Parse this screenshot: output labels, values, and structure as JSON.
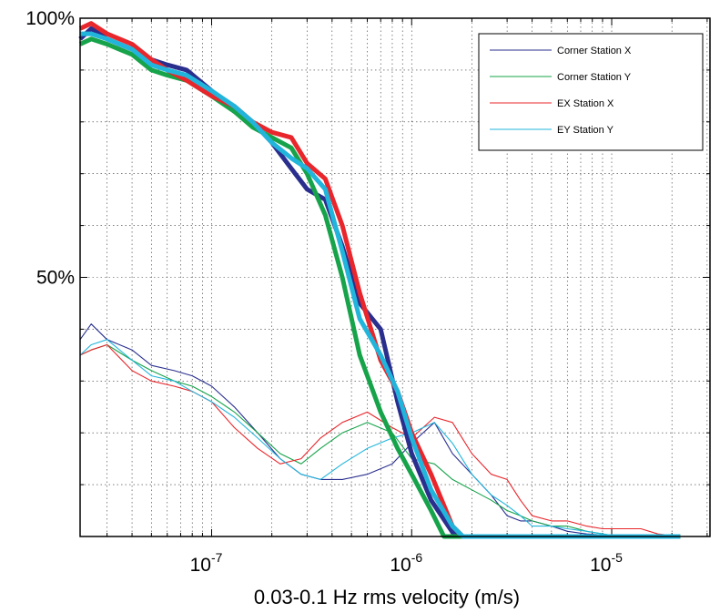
{
  "chart_data": {
    "type": "line",
    "title": "",
    "xlabel": "0.03-0.1 Hz rms velocity (m/s)",
    "ylabel": "",
    "x_scale": "log",
    "xlim": [
      2.2e-08,
      3.1e-05
    ],
    "ylim": [
      0,
      100
    ],
    "grid": true,
    "legend_position": "top-right",
    "x_ticks": [
      {
        "value": 1e-07,
        "base": "10",
        "exp": "-7"
      },
      {
        "value": 1e-06,
        "base": "10",
        "exp": "-6"
      },
      {
        "value": 1e-05,
        "base": "10",
        "exp": "-5"
      }
    ],
    "y_ticks": [
      {
        "value": 50,
        "label": "50%"
      },
      {
        "value": 100,
        "label": "100%"
      }
    ],
    "colors": {
      "Corner Station X": "#2a2f8e",
      "Corner Station Y": "#16a34a",
      "EX Station X": "#e8262b",
      "EY Station Y": "#22b5dc"
    },
    "series": [
      {
        "name": "Corner Station X",
        "kind": "cumulative",
        "x": [
          2.2e-08,
          2.5e-08,
          3e-08,
          4e-08,
          5e-08,
          6e-08,
          7.5e-08,
          1e-07,
          1.3e-07,
          1.6e-07,
          2e-07,
          2.5e-07,
          3e-07,
          3.7e-07,
          4.5e-07,
          5.5e-07,
          7e-07,
          8.5e-07,
          1e-06,
          1.25e-06,
          1.6e-06,
          1.8e-06,
          2.2e-05
        ],
        "y": [
          96,
          98,
          96,
          94,
          92,
          91,
          90,
          86,
          82,
          80,
          76,
          71,
          67,
          65,
          56,
          45,
          40,
          26,
          16,
          7,
          0.8,
          0,
          0
        ]
      },
      {
        "name": "Corner Station Y",
        "kind": "cumulative",
        "x": [
          2.2e-08,
          2.5e-08,
          3e-08,
          4e-08,
          5e-08,
          6e-08,
          7.5e-08,
          1e-07,
          1.3e-07,
          1.6e-07,
          2e-07,
          2.5e-07,
          3e-07,
          3.7e-07,
          4.5e-07,
          5.5e-07,
          7e-07,
          8.5e-07,
          1e-06,
          1.25e-06,
          1.45e-06,
          1.6e-06,
          2.2e-05
        ],
        "y": [
          95,
          96,
          95,
          93,
          90,
          89,
          88,
          85,
          82,
          79,
          77,
          75,
          70,
          62,
          50,
          35,
          24,
          17,
          12,
          5,
          0,
          0,
          0
        ]
      },
      {
        "name": "EX Station X",
        "kind": "cumulative",
        "x": [
          2.2e-08,
          2.5e-08,
          3e-08,
          4e-08,
          5e-08,
          6e-08,
          7.5e-08,
          1e-07,
          1.3e-07,
          1.6e-07,
          2e-07,
          2.5e-07,
          3e-07,
          3.7e-07,
          4.5e-07,
          5.5e-07,
          7e-07,
          8.5e-07,
          1e-06,
          1.25e-06,
          1.6e-06,
          1.8e-06,
          1.65e-05
        ],
        "y": [
          98,
          99,
          97,
          95,
          92,
          90,
          88,
          85,
          83,
          80,
          78,
          77,
          72,
          69,
          60,
          47,
          34,
          28,
          20,
          12,
          2,
          0,
          0
        ]
      },
      {
        "name": "EY Station Y",
        "kind": "cumulative",
        "x": [
          2.2e-08,
          2.5e-08,
          3e-08,
          4e-08,
          5e-08,
          6e-08,
          7.5e-08,
          1e-07,
          1.3e-07,
          1.6e-07,
          2e-07,
          2.5e-07,
          3e-07,
          3.7e-07,
          4.5e-07,
          5.5e-07,
          7e-07,
          8.5e-07,
          1e-06,
          1.25e-06,
          1.6e-06,
          1.8e-06,
          2.2e-05
        ],
        "y": [
          97,
          97,
          96,
          94,
          91,
          90,
          89,
          86,
          83,
          80,
          76,
          73,
          71,
          67,
          55,
          42,
          35,
          28,
          19,
          9,
          2,
          0,
          0
        ]
      },
      {
        "name": "Corner Station X",
        "kind": "histogram",
        "x": [
          2.2e-08,
          2.5e-08,
          3e-08,
          4e-08,
          5e-08,
          6.5e-08,
          8e-08,
          1e-07,
          1.3e-07,
          1.7e-07,
          2.2e-07,
          2.8e-07,
          3.5e-07,
          4.5e-07,
          6e-07,
          8e-07,
          1e-06,
          1.3e-06,
          1.6e-06,
          2e-06,
          2.5e-06,
          3e-06,
          3.5e-06,
          4e-06,
          5e-06,
          6e-06,
          7.5e-06,
          9e-06,
          1.1e-05,
          1.4e-05,
          1.7e-05,
          2.2e-05
        ],
        "y": [
          38,
          41,
          38,
          36,
          33,
          32,
          31,
          29,
          25,
          20,
          15,
          12,
          11,
          11,
          12,
          14,
          18,
          22,
          16,
          12,
          8,
          4,
          3,
          3,
          2,
          1,
          0.5,
          0.3,
          0,
          0,
          0,
          0
        ]
      },
      {
        "name": "Corner Station Y",
        "kind": "histogram",
        "x": [
          2.2e-08,
          2.5e-08,
          3e-08,
          4e-08,
          5e-08,
          6.5e-08,
          8e-08,
          1e-07,
          1.3e-07,
          1.7e-07,
          2.2e-07,
          2.8e-07,
          3.5e-07,
          4.5e-07,
          6e-07,
          8e-07,
          1e-06,
          1.3e-06,
          1.6e-06,
          2e-06,
          2.5e-06,
          3e-06,
          3.5e-06,
          4e-06,
          5e-06,
          6e-06,
          7.5e-06,
          9e-06,
          1.1e-05,
          1.4e-05,
          1.7e-05,
          2.2e-05
        ],
        "y": [
          35,
          36,
          37,
          34,
          32,
          30,
          29,
          27,
          24,
          20,
          16,
          14,
          17,
          20,
          22,
          20,
          15,
          14,
          11,
          9,
          7,
          5,
          4,
          3,
          2,
          2,
          1,
          0.5,
          0,
          0,
          0,
          0
        ]
      },
      {
        "name": "EX Station X",
        "kind": "histogram",
        "x": [
          2.2e-08,
          2.5e-08,
          3e-08,
          4e-08,
          5e-08,
          6.5e-08,
          8e-08,
          1e-07,
          1.3e-07,
          1.7e-07,
          2.2e-07,
          2.8e-07,
          3.5e-07,
          4.5e-07,
          6e-07,
          8e-07,
          1e-06,
          1.3e-06,
          1.6e-06,
          2e-06,
          2.5e-06,
          3e-06,
          3.5e-06,
          4e-06,
          5e-06,
          6e-06,
          7.5e-06,
          9e-06,
          1.1e-05,
          1.4e-05,
          1.7e-05,
          2.2e-05
        ],
        "y": [
          35,
          36,
          37,
          32,
          30,
          29,
          28,
          26,
          21,
          17,
          14,
          15,
          19,
          22,
          24,
          21,
          19,
          23,
          22,
          16,
          12,
          11,
          7,
          4,
          3,
          3,
          2,
          1.5,
          1.5,
          1.5,
          0.5,
          0
        ]
      },
      {
        "name": "EY Station Y",
        "kind": "histogram",
        "x": [
          2.2e-08,
          2.5e-08,
          3e-08,
          4e-08,
          5e-08,
          6.5e-08,
          8e-08,
          1e-07,
          1.3e-07,
          1.7e-07,
          2.2e-07,
          2.8e-07,
          3.5e-07,
          4.5e-07,
          6e-07,
          8e-07,
          1e-06,
          1.3e-06,
          1.6e-06,
          2e-06,
          2.5e-06,
          3e-06,
          3.5e-06,
          4e-06,
          5e-06,
          6e-06,
          7.5e-06,
          9e-06,
          1.1e-05,
          1.4e-05,
          1.7e-05,
          2.2e-05
        ],
        "y": [
          35,
          37,
          38,
          34,
          31,
          30,
          28,
          26,
          23,
          19,
          15,
          12,
          11,
          14,
          17,
          19,
          20,
          22,
          18,
          12,
          8,
          6,
          4,
          2,
          2,
          1.5,
          1,
          0.5,
          0,
          0,
          0,
          0
        ]
      }
    ]
  }
}
